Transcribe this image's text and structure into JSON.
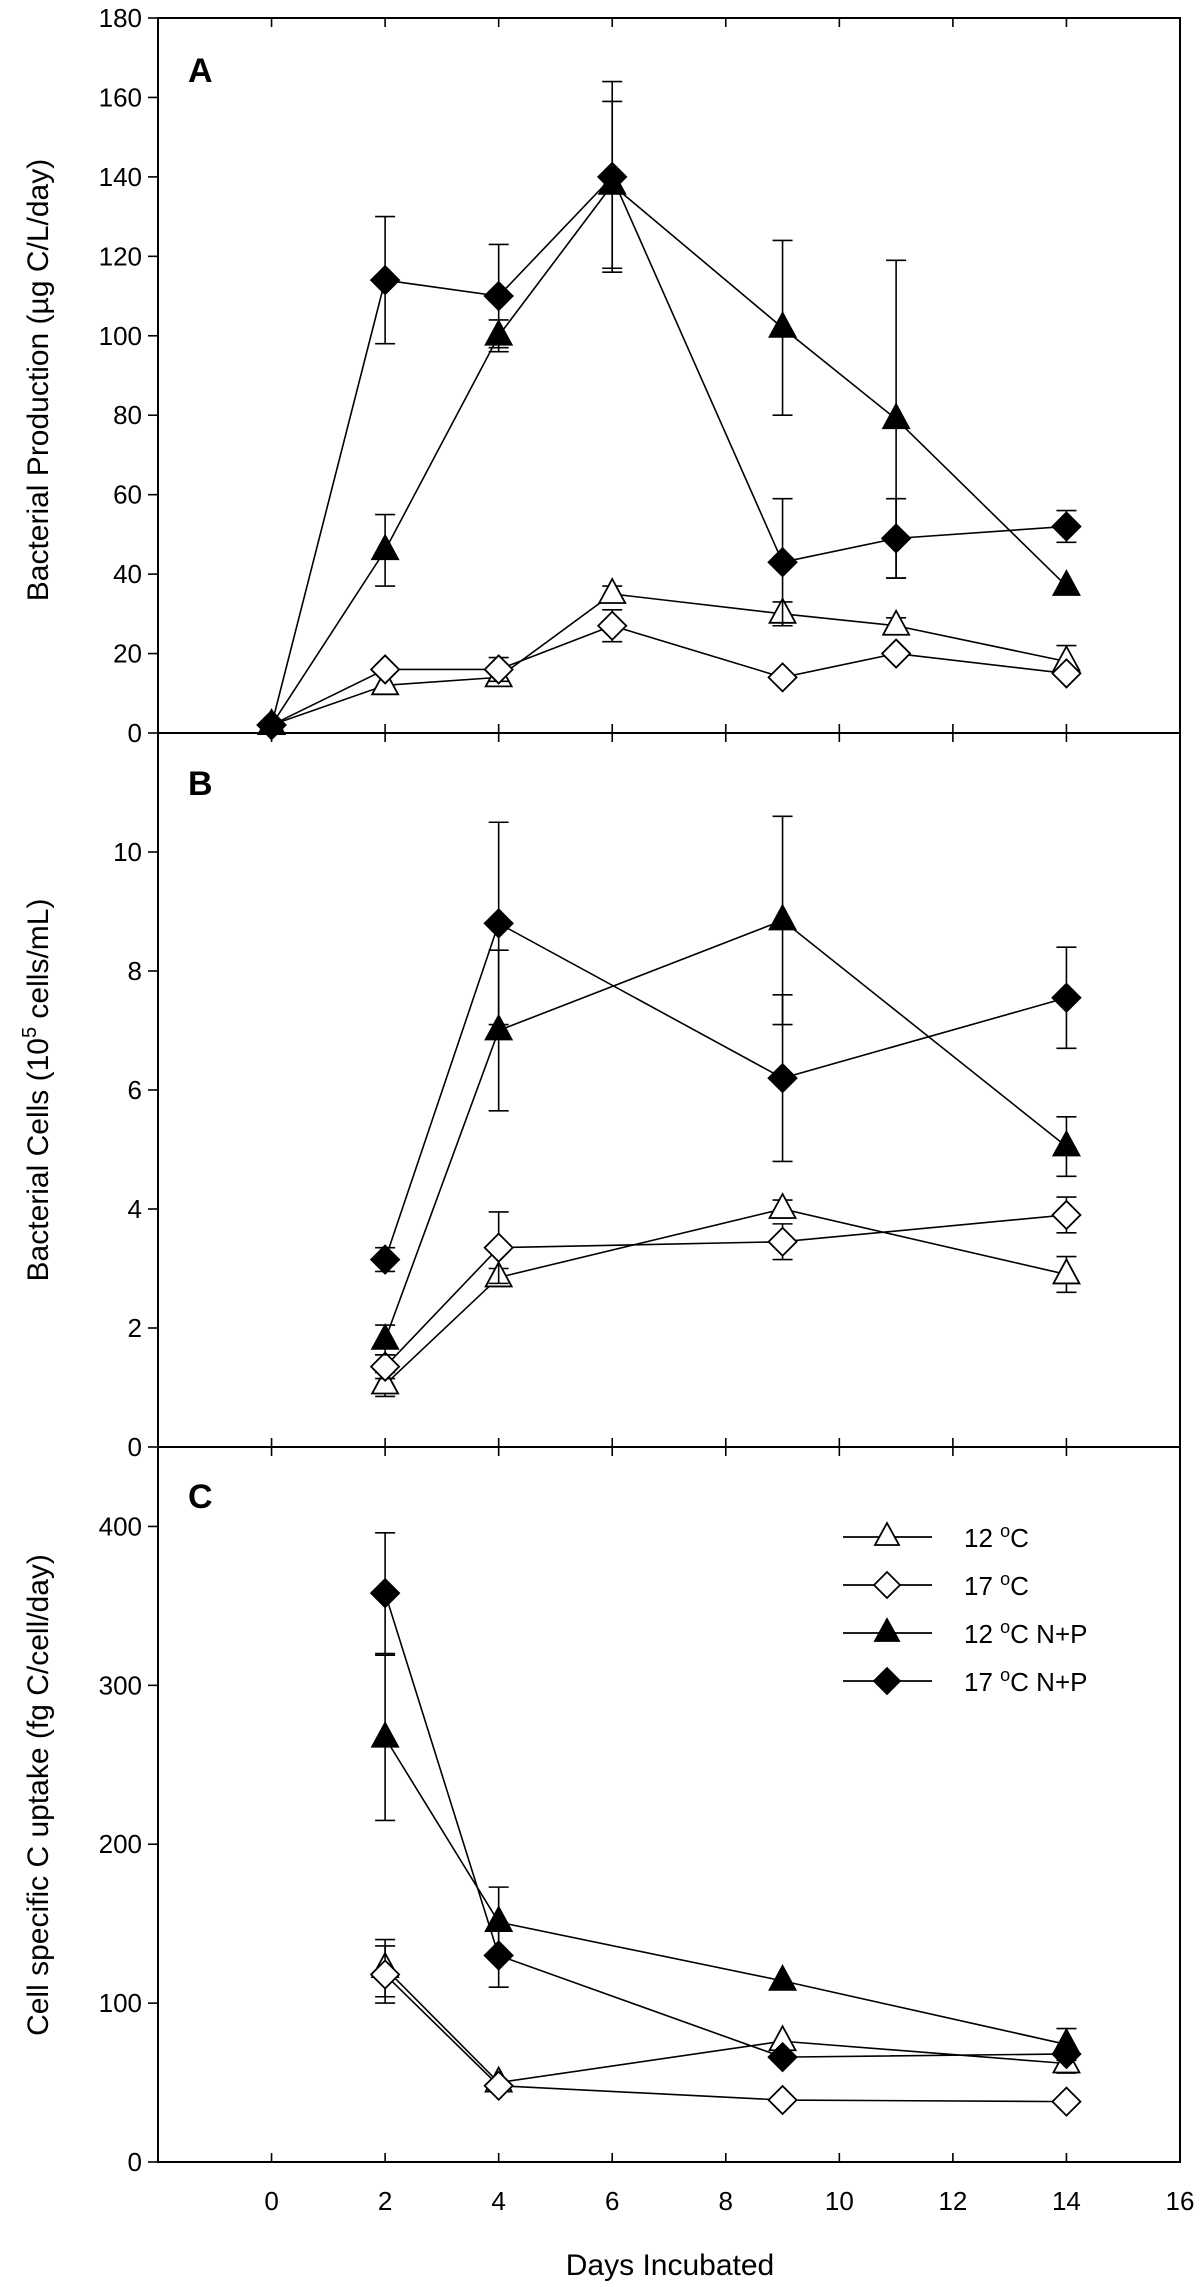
{
  "figure": {
    "xlabel": "Days Incubated",
    "x_ticks": [
      "0",
      "2",
      "4",
      "6",
      "8",
      "10",
      "12",
      "14",
      "16"
    ],
    "xlim": [
      -2,
      16
    ]
  },
  "legend": {
    "entries": [
      {
        "series": "12C",
        "prefix": "12 ",
        "sup": "o",
        "suffix": "C"
      },
      {
        "series": "17C",
        "prefix": "17 ",
        "sup": "o",
        "suffix": "C"
      },
      {
        "series": "12C_NP",
        "prefix": "12 ",
        "sup": "o",
        "suffix": "C N+P"
      },
      {
        "series": "17C_NP",
        "prefix": "17 ",
        "sup": "o",
        "suffix": "C N+P"
      }
    ]
  },
  "series_styles": {
    "12C": {
      "marker": "triangle",
      "fill": "#ffffff"
    },
    "17C": {
      "marker": "diamond",
      "fill": "#ffffff"
    },
    "12C_NP": {
      "marker": "triangle",
      "fill": "#000000"
    },
    "17C_NP": {
      "marker": "diamond",
      "fill": "#000000"
    }
  },
  "chart_data": [
    {
      "type": "line",
      "panel": "A",
      "ylabel": {
        "main": "Bacterial Production (µg C/L/day)"
      },
      "ylim": [
        0,
        180
      ],
      "y_ticks": [
        "0",
        "20",
        "40",
        "60",
        "80",
        "100",
        "120",
        "140",
        "160",
        "180"
      ],
      "series": [
        {
          "id": "12C",
          "name": "12 oC",
          "points": [
            {
              "x": 0,
              "y": 2
            },
            {
              "x": 2,
              "y": 12
            },
            {
              "x": 4,
              "y": 14
            },
            {
              "x": 6,
              "y": 35,
              "err": 2
            },
            {
              "x": 9,
              "y": 30,
              "err": 3
            },
            {
              "x": 11,
              "y": 27,
              "err": 2
            },
            {
              "x": 14,
              "y": 18,
              "err": 4
            }
          ]
        },
        {
          "id": "17C",
          "name": "17 oC",
          "points": [
            {
              "x": 0,
              "y": 2
            },
            {
              "x": 2,
              "y": 16
            },
            {
              "x": 4,
              "y": 16,
              "err": 3
            },
            {
              "x": 6,
              "y": 27,
              "err": 4
            },
            {
              "x": 9,
              "y": 14
            },
            {
              "x": 11,
              "y": 20
            },
            {
              "x": 14,
              "y": 15
            }
          ]
        },
        {
          "id": "12C_NP",
          "name": "12 oC N+P",
          "points": [
            {
              "x": 0,
              "y": 2
            },
            {
              "x": 2,
              "y": 46,
              "err": 9
            },
            {
              "x": 4,
              "y": 100,
              "err": 4
            },
            {
              "x": 6,
              "y": 138,
              "err": 21
            },
            {
              "x": 9,
              "y": 102,
              "err": 22
            },
            {
              "x": 11,
              "y": 79,
              "err": 40
            },
            {
              "x": 14,
              "y": 37
            }
          ]
        },
        {
          "id": "17C_NP",
          "name": "17 oC N+P",
          "points": [
            {
              "x": 0,
              "y": 2
            },
            {
              "x": 2,
              "y": 114,
              "err": 16
            },
            {
              "x": 4,
              "y": 110,
              "err": 13
            },
            {
              "x": 6,
              "y": 140,
              "err": 24
            },
            {
              "x": 9,
              "y": 43,
              "err": 16
            },
            {
              "x": 11,
              "y": 49,
              "err": 10
            },
            {
              "x": 14,
              "y": 52,
              "err": 4
            }
          ]
        }
      ]
    },
    {
      "type": "line",
      "panel": "B",
      "ylabel": {
        "main": "Bacterial Cells (10",
        "sup": "5",
        "rest": " cells/mL)"
      },
      "ylim": [
        0,
        12
      ],
      "y_ticks": [
        "0",
        "2",
        "4",
        "6",
        "8",
        "10"
      ],
      "series": [
        {
          "id": "12C",
          "name": "12 oC",
          "points": [
            {
              "x": 2,
              "y": 1.05,
              "err": 0.2
            },
            {
              "x": 4,
              "y": 2.85,
              "err": 0.15
            },
            {
              "x": 9,
              "y": 4.0,
              "err": 0.15
            },
            {
              "x": 14,
              "y": 2.9,
              "err": 0.3
            }
          ]
        },
        {
          "id": "17C",
          "name": "17 oC",
          "points": [
            {
              "x": 2,
              "y": 1.35,
              "err": 0.2
            },
            {
              "x": 4,
              "y": 3.35,
              "err": 0.6
            },
            {
              "x": 9,
              "y": 3.45,
              "err": 0.3
            },
            {
              "x": 14,
              "y": 3.9,
              "err": 0.3
            }
          ]
        },
        {
          "id": "12C_NP",
          "name": "12 oC N+P",
          "points": [
            {
              "x": 2,
              "y": 1.8,
              "err": 0.25
            },
            {
              "x": 4,
              "y": 7.0,
              "err": 1.35
            },
            {
              "x": 9,
              "y": 8.85,
              "err": 1.75
            },
            {
              "x": 14,
              "y": 5.05,
              "err": 0.5
            }
          ]
        },
        {
          "id": "17C_NP",
          "name": "17 oC N+P",
          "points": [
            {
              "x": 2,
              "y": 3.15,
              "err": 0.2
            },
            {
              "x": 4,
              "y": 8.8,
              "err": 1.7
            },
            {
              "x": 9,
              "y": 6.2,
              "err": 1.4
            },
            {
              "x": 14,
              "y": 7.55,
              "err": 0.85
            }
          ]
        }
      ]
    },
    {
      "type": "line",
      "panel": "C",
      "ylabel": {
        "main": "Cell specific C uptake (fg C/cell/day)"
      },
      "ylim": [
        0,
        450
      ],
      "y_ticks": [
        "0",
        "100",
        "200",
        "300",
        "400"
      ],
      "series": [
        {
          "id": "12C",
          "name": "12 oC",
          "points": [
            {
              "x": 2,
              "y": 122,
              "err": 18
            },
            {
              "x": 4,
              "y": 50
            },
            {
              "x": 9,
              "y": 76
            },
            {
              "x": 14,
              "y": 62,
              "err": 6
            }
          ]
        },
        {
          "id": "17C",
          "name": "17 oC",
          "points": [
            {
              "x": 2,
              "y": 118,
              "err": 18
            },
            {
              "x": 4,
              "y": 48
            },
            {
              "x": 9,
              "y": 39
            },
            {
              "x": 14,
              "y": 38
            }
          ]
        },
        {
          "id": "12C_NP",
          "name": "12 oC N+P",
          "points": [
            {
              "x": 2,
              "y": 267,
              "err": 52
            },
            {
              "x": 4,
              "y": 151,
              "err": 22
            },
            {
              "x": 9,
              "y": 114
            },
            {
              "x": 14,
              "y": 74,
              "err": 10
            }
          ]
        },
        {
          "id": "17C_NP",
          "name": "17 oC N+P",
          "points": [
            {
              "x": 2,
              "y": 358,
              "err": 38
            },
            {
              "x": 4,
              "y": 130,
              "err": 20
            },
            {
              "x": 9,
              "y": 66
            },
            {
              "x": 14,
              "y": 68
            }
          ]
        }
      ]
    }
  ]
}
